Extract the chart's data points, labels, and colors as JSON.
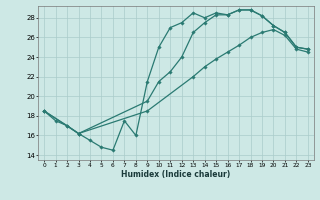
{
  "xlabel": "Humidex (Indice chaleur)",
  "xlim": [
    -0.5,
    23.5
  ],
  "ylim": [
    13.5,
    29.2
  ],
  "yticks": [
    14,
    16,
    18,
    20,
    22,
    24,
    26,
    28
  ],
  "xticks": [
    0,
    1,
    2,
    3,
    4,
    5,
    6,
    7,
    8,
    9,
    10,
    11,
    12,
    13,
    14,
    15,
    16,
    17,
    18,
    19,
    20,
    21,
    22,
    23
  ],
  "bg_color": "#cde8e5",
  "grid_color": "#aaccca",
  "line_color": "#2a7a72",
  "line1_x": [
    0,
    1,
    2,
    3,
    4,
    5,
    6,
    7,
    8,
    9,
    10,
    11,
    12,
    13,
    14,
    15,
    16,
    17,
    18,
    19,
    20,
    21,
    22,
    23
  ],
  "line1_y": [
    18.5,
    17.5,
    17.0,
    16.2,
    15.5,
    14.8,
    14.5,
    17.5,
    16.0,
    21.5,
    25.0,
    27.0,
    27.5,
    28.5,
    28.0,
    28.5,
    28.3,
    28.8,
    28.8,
    28.2,
    27.2,
    26.5,
    25.0,
    24.8
  ],
  "line2_x": [
    0,
    2,
    3,
    9,
    10,
    11,
    12,
    13,
    14,
    15,
    16,
    17,
    18,
    19,
    20,
    21,
    22,
    23
  ],
  "line2_y": [
    18.5,
    17.0,
    16.2,
    19.5,
    21.5,
    22.5,
    24.0,
    26.5,
    27.5,
    28.3,
    28.3,
    28.8,
    28.8,
    28.2,
    27.2,
    26.5,
    25.0,
    24.8
  ],
  "line3_x": [
    0,
    3,
    9,
    13,
    14,
    15,
    16,
    17,
    18,
    19,
    20,
    21,
    22,
    23
  ],
  "line3_y": [
    18.5,
    16.2,
    18.5,
    22.0,
    23.0,
    23.8,
    24.5,
    25.2,
    26.0,
    26.5,
    26.8,
    26.2,
    24.8,
    24.5
  ]
}
